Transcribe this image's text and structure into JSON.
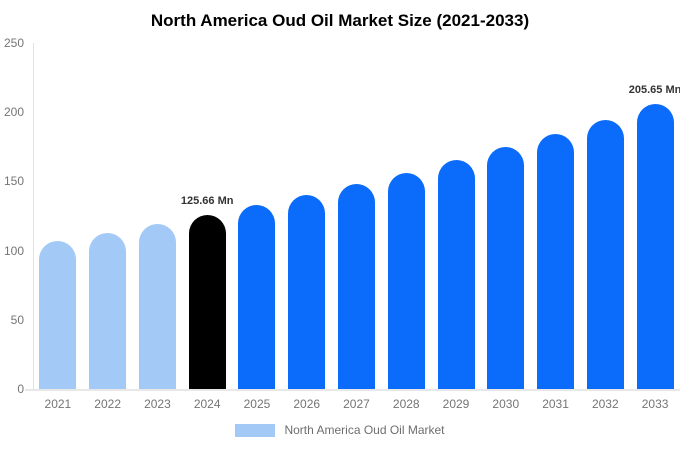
{
  "chart_data": {
    "type": "bar",
    "title": "North America Oud Oil Market Size (2021-2033)",
    "xlabel": "",
    "ylabel": "",
    "unit": "Mn",
    "ylim": [
      0,
      250
    ],
    "yticks": [
      0,
      50,
      100,
      150,
      200,
      250
    ],
    "grid": false,
    "legend_position": "bottom",
    "series_name": "North America Oud Oil Market",
    "categories": [
      "2021",
      "2022",
      "2023",
      "2024",
      "2025",
      "2026",
      "2027",
      "2028",
      "2029",
      "2030",
      "2031",
      "2032",
      "2033"
    ],
    "values": [
      106.6,
      112.6,
      119.0,
      125.66,
      132.7,
      140.2,
      148.1,
      156.4,
      165.2,
      174.5,
      184.4,
      194.7,
      205.65
    ],
    "bar_colors": [
      "#a3c9f7",
      "#a3c9f7",
      "#a3c9f7",
      "#000000",
      "#0b6bfa",
      "#0b6bfa",
      "#0b6bfa",
      "#0b6bfa",
      "#0b6bfa",
      "#0b6bfa",
      "#0b6bfa",
      "#0b6bfa",
      "#0b6bfa"
    ],
    "colors": {
      "historical": "#a3c9f7",
      "highlight": "#000000",
      "forecast": "#0b6bfa"
    },
    "annotations": [
      {
        "category": "2024",
        "text": "125.66 Mn"
      },
      {
        "category": "2033",
        "text": "205.65 Mn"
      }
    ]
  },
  "legend": {
    "label": "North America Oud Oil Market",
    "swatch_color": "#a3c9f7"
  }
}
